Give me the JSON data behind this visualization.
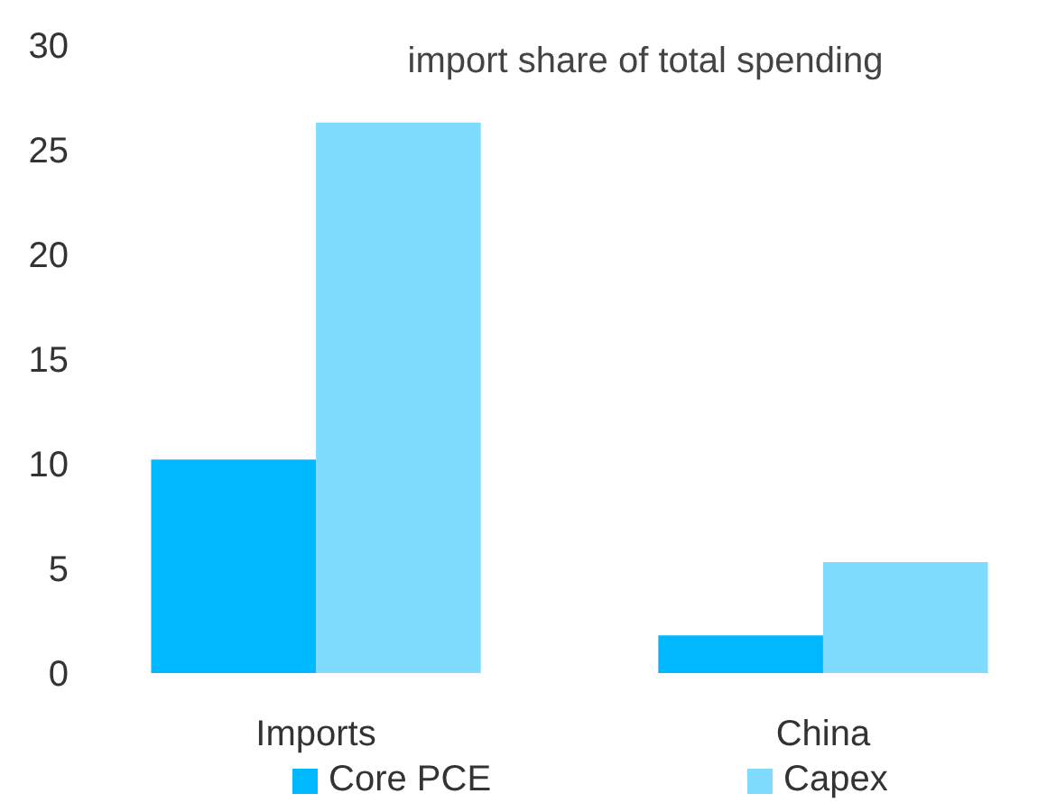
{
  "chart_data": {
    "type": "bar",
    "title": "import share of total spending",
    "categories": [
      "Imports",
      "China"
    ],
    "series": [
      {
        "name": "Core PCE",
        "color": "#00b8ff",
        "values": [
          10.2,
          1.8
        ]
      },
      {
        "name": "Capex",
        "color": "#80dcff",
        "values": [
          26.3,
          5.3
        ]
      }
    ],
    "ylim": [
      0,
      30
    ],
    "yticks": [
      0,
      5,
      10,
      15,
      20,
      25,
      30
    ],
    "grid": false,
    "legend": "bottom"
  }
}
